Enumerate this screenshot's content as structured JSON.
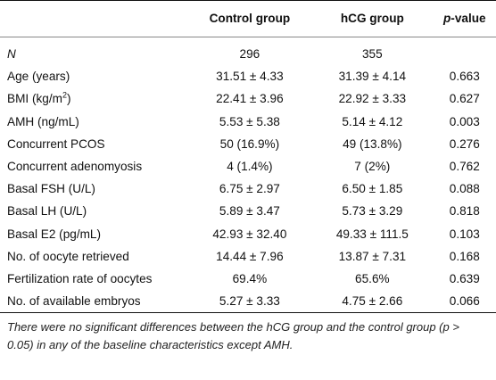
{
  "table": {
    "headers": [
      "",
      "Control group",
      "hCG group",
      "p-value"
    ],
    "header_pvalue_italic_part": "p",
    "header_pvalue_rest": "-value",
    "rows": [
      {
        "label": "N",
        "control": "296",
        "hcg": "355",
        "p": ""
      },
      {
        "label": "Age (years)",
        "control": "31.51 ± 4.33",
        "hcg": "31.39 ± 4.14",
        "p": "0.663"
      },
      {
        "label": "BMI (kg/m",
        "label_sup": "2",
        "label_end": ")",
        "control": "22.41 ± 3.96",
        "hcg": "22.92 ± 3.33",
        "p": "0.627"
      },
      {
        "label": "AMH (ng/mL)",
        "control": "5.53 ± 5.38",
        "hcg": "5.14 ± 4.12",
        "p": "0.003"
      },
      {
        "label": "Concurrent PCOS",
        "control": "50 (16.9%)",
        "hcg": "49 (13.8%)",
        "p": "0.276"
      },
      {
        "label": "Concurrent adenomyosis",
        "control": "4 (1.4%)",
        "hcg": "7 (2%)",
        "p": "0.762"
      },
      {
        "label": "Basal FSH (U/L)",
        "control": "6.75 ± 2.97",
        "hcg": "6.50 ± 1.85",
        "p": "0.088"
      },
      {
        "label": "Basal LH (U/L)",
        "control": "5.89 ± 3.47",
        "hcg": "5.73 ± 3.29",
        "p": "0.818"
      },
      {
        "label": "Basal E2 (pg/mL)",
        "control": "42.93 ± 32.40",
        "hcg": "49.33 ± 111.5",
        "p": "0.103"
      },
      {
        "label": "No. of oocyte retrieved",
        "control": "14.44 ± 7.96",
        "hcg": "13.87 ± 7.31",
        "p": "0.168"
      },
      {
        "label": "Fertilization rate of oocytes",
        "control": "69.4%",
        "hcg": "65.6%",
        "p": "0.639"
      },
      {
        "label": "No. of available embryos",
        "control": "5.27 ± 3.33",
        "hcg": "4.75 ± 2.66",
        "p": "0.066"
      }
    ]
  },
  "footnote": "There were no significant differences between the hCG group and the control group (p > 0.05) in any of the baseline characteristics except AMH."
}
